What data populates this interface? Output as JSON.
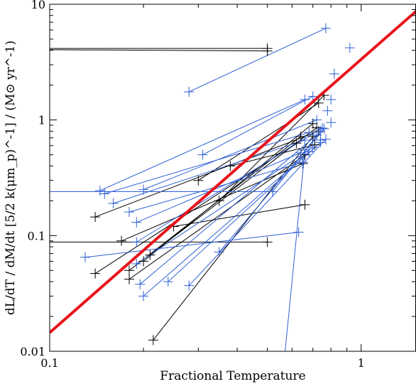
{
  "chart_data": {
    "type": "line",
    "title": "",
    "xlabel": "Fractional Temperature",
    "ylabel": "dL/dT / dM/dt [5/2 k(μm_p)^-1] / (M⊙ yr^-1)",
    "xscale": "log",
    "yscale": "log",
    "xlim": [
      0.1,
      1.5
    ],
    "ylim": [
      0.01,
      10
    ],
    "x_tick_labels": [
      "0.1",
      "1"
    ],
    "y_tick_labels": [
      "0.01",
      "0.1",
      "1",
      "10"
    ],
    "grid": false,
    "legend": "none",
    "colors": {
      "black": "#000000",
      "blue": "#2f5fd6",
      "fit": "#e8141c"
    },
    "fit_line": {
      "color": "red",
      "points": [
        [
          0.1,
          0.0145
        ],
        [
          1.5,
          8.7
        ]
      ]
    },
    "series": [
      {
        "color": "black",
        "segments": [
          [
            [
              0.1,
              4.15
            ],
            [
              0.5,
              4.15
            ]
          ],
          [
            [
              0.1,
              4.05
            ],
            [
              0.5,
              3.95
            ]
          ],
          [
            [
              0.1,
              0.088
            ],
            [
              0.5,
              0.088
            ]
          ],
          [
            [
              0.14,
              0.145
            ],
            [
              0.73,
              0.8
            ]
          ],
          [
            [
              0.14,
              0.047
            ],
            [
              0.62,
              0.63
            ]
          ],
          [
            [
              0.17,
              0.09
            ],
            [
              0.65,
              0.42
            ]
          ],
          [
            [
              0.18,
              0.05
            ],
            [
              0.64,
              0.72
            ]
          ],
          [
            [
              0.18,
              0.042
            ],
            [
              0.66,
              0.5
            ]
          ],
          [
            [
              0.2,
              0.06
            ],
            [
              0.7,
              0.93
            ]
          ],
          [
            [
              0.21,
              0.068
            ],
            [
              0.72,
              0.86
            ]
          ],
          [
            [
              0.215,
              0.0125
            ],
            [
              0.7,
              0.72
            ]
          ],
          [
            [
              0.3,
              0.3
            ],
            [
              0.73,
              1.4
            ]
          ],
          [
            [
              0.35,
              0.2
            ],
            [
              0.76,
              1.63
            ]
          ],
          [
            [
              0.38,
              0.4
            ],
            [
              0.71,
              0.61
            ]
          ],
          [
            [
              0.25,
              0.12
            ],
            [
              0.66,
              0.185
            ]
          ]
        ]
      },
      {
        "color": "blue",
        "segments": [
          [
            [
              0.1,
              0.24
            ],
            [
              0.52,
              0.24
            ]
          ],
          [
            [
              0.13,
              0.065
            ],
            [
              0.63,
              0.107
            ]
          ],
          [
            [
              0.145,
              0.245
            ],
            [
              0.66,
              1.5
            ]
          ],
          [
            [
              0.15,
              0.23
            ],
            [
              0.68,
              0.78
            ]
          ],
          [
            [
              0.16,
              0.19
            ],
            [
              0.66,
              0.67
            ]
          ],
          [
            [
              0.18,
              0.16
            ],
            [
              0.65,
              0.43
            ]
          ],
          [
            [
              0.19,
              0.13
            ],
            [
              0.64,
              0.52
            ]
          ],
          [
            [
              0.19,
              0.088
            ],
            [
              0.75,
              0.85
            ]
          ],
          [
            [
              0.19,
              0.057
            ],
            [
              0.7,
              0.58
            ]
          ],
          [
            [
              0.195,
              0.038
            ],
            [
              0.72,
              0.74
            ]
          ],
          [
            [
              0.2,
              0.03
            ],
            [
              0.68,
              0.53
            ]
          ],
          [
            [
              0.2,
              0.25
            ],
            [
              0.72,
              1.0
            ]
          ],
          [
            [
              0.24,
              0.04
            ],
            [
              0.74,
              0.64
            ]
          ],
          [
            [
              0.28,
              0.037
            ],
            [
              0.77,
              0.68
            ]
          ],
          [
            [
              0.28,
              1.75
            ],
            [
              0.77,
              6.2
            ]
          ],
          [
            [
              0.31,
              0.5
            ],
            [
              0.7,
              1.6
            ]
          ],
          [
            [
              0.35,
              0.072
            ],
            [
              0.76,
              0.84
            ]
          ],
          [
            [
              0.52,
              0.24
            ],
            [
              0.74,
              0.8
            ]
          ],
          [
            [
              0.57,
              0.01
            ],
            [
              0.66,
              0.55
            ]
          ],
          [
            [
              0.92,
              4.2
            ],
            [
              0.92,
              4.2
            ]
          ],
          [
            [
              0.82,
              2.5
            ],
            [
              0.82,
              2.5
            ]
          ],
          [
            [
              0.8,
              1.5
            ],
            [
              0.8,
              1.5
            ]
          ],
          [
            [
              0.78,
              1.2
            ],
            [
              0.78,
              1.2
            ]
          ],
          [
            [
              0.8,
              0.95
            ],
            [
              0.8,
              0.95
            ]
          ],
          [
            [
              0.74,
              0.67
            ],
            [
              0.74,
              0.67
            ]
          ]
        ]
      }
    ]
  }
}
